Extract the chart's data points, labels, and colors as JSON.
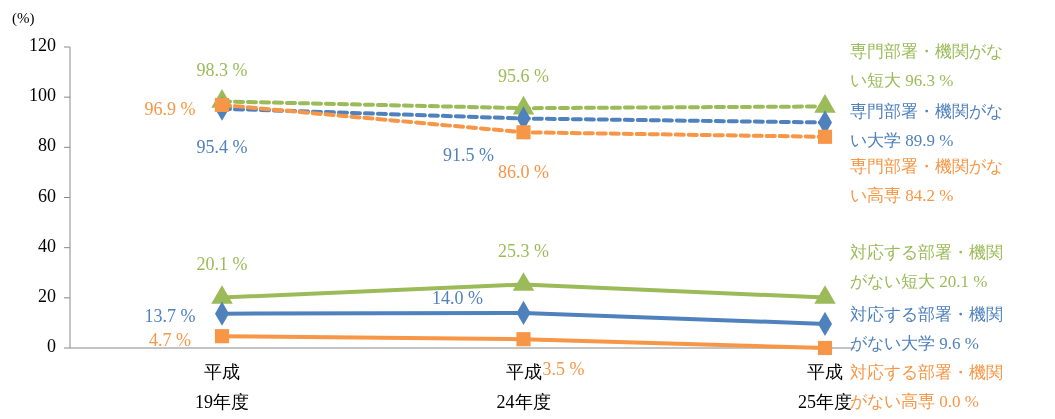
{
  "chart_data": {
    "type": "line",
    "ylabel": "(%)",
    "categories": [
      "平成19年度",
      "平成24年度",
      "平成25年度"
    ],
    "ylim": [
      0,
      120
    ],
    "yticks": [
      0,
      20,
      40,
      60,
      80,
      100,
      120
    ],
    "grid": false,
    "series": [
      {
        "name": "専門部署・機関がない短大",
        "color": "#9bbb59",
        "line_style": "dashed",
        "marker": "triangle",
        "values": [
          98.3,
          95.6,
          96.3
        ],
        "value_labels": [
          "98.3 %",
          "95.6 %",
          "96.3 %"
        ]
      },
      {
        "name": "専門部署・機関がない大学",
        "color": "#4f81bd",
        "line_style": "dashed",
        "marker": "diamond",
        "values": [
          95.4,
          91.5,
          89.9
        ],
        "value_labels": [
          "95.4 %",
          "91.5 %",
          "89.9 %"
        ]
      },
      {
        "name": "専門部署・機関がない高専",
        "color": "#f79646",
        "line_style": "dashed",
        "marker": "square",
        "values": [
          96.9,
          86.0,
          84.2
        ],
        "value_labels": [
          "96.9 %",
          "86.0 %",
          "84.2 %"
        ]
      },
      {
        "name": "対応する部署・機関がない短大",
        "color": "#9bbb59",
        "line_style": "solid",
        "marker": "triangle",
        "values": [
          20.1,
          25.3,
          20.1
        ],
        "value_labels": [
          "20.1 %",
          "25.3 %",
          "20.1 %"
        ]
      },
      {
        "name": "対応する部署・機関がない大学",
        "color": "#4f81bd",
        "line_style": "solid",
        "marker": "diamond",
        "values": [
          13.7,
          14.0,
          9.6
        ],
        "value_labels": [
          "13.7 %",
          "14.0 %",
          "9.6 %"
        ]
      },
      {
        "name": "対応する部署・機関がない高専",
        "color": "#f79646",
        "line_style": "solid",
        "marker": "square",
        "values": [
          4.7,
          3.5,
          0.0
        ],
        "value_labels": [
          "4.7 %",
          "3.5 %",
          "0.0 %"
        ]
      }
    ]
  }
}
